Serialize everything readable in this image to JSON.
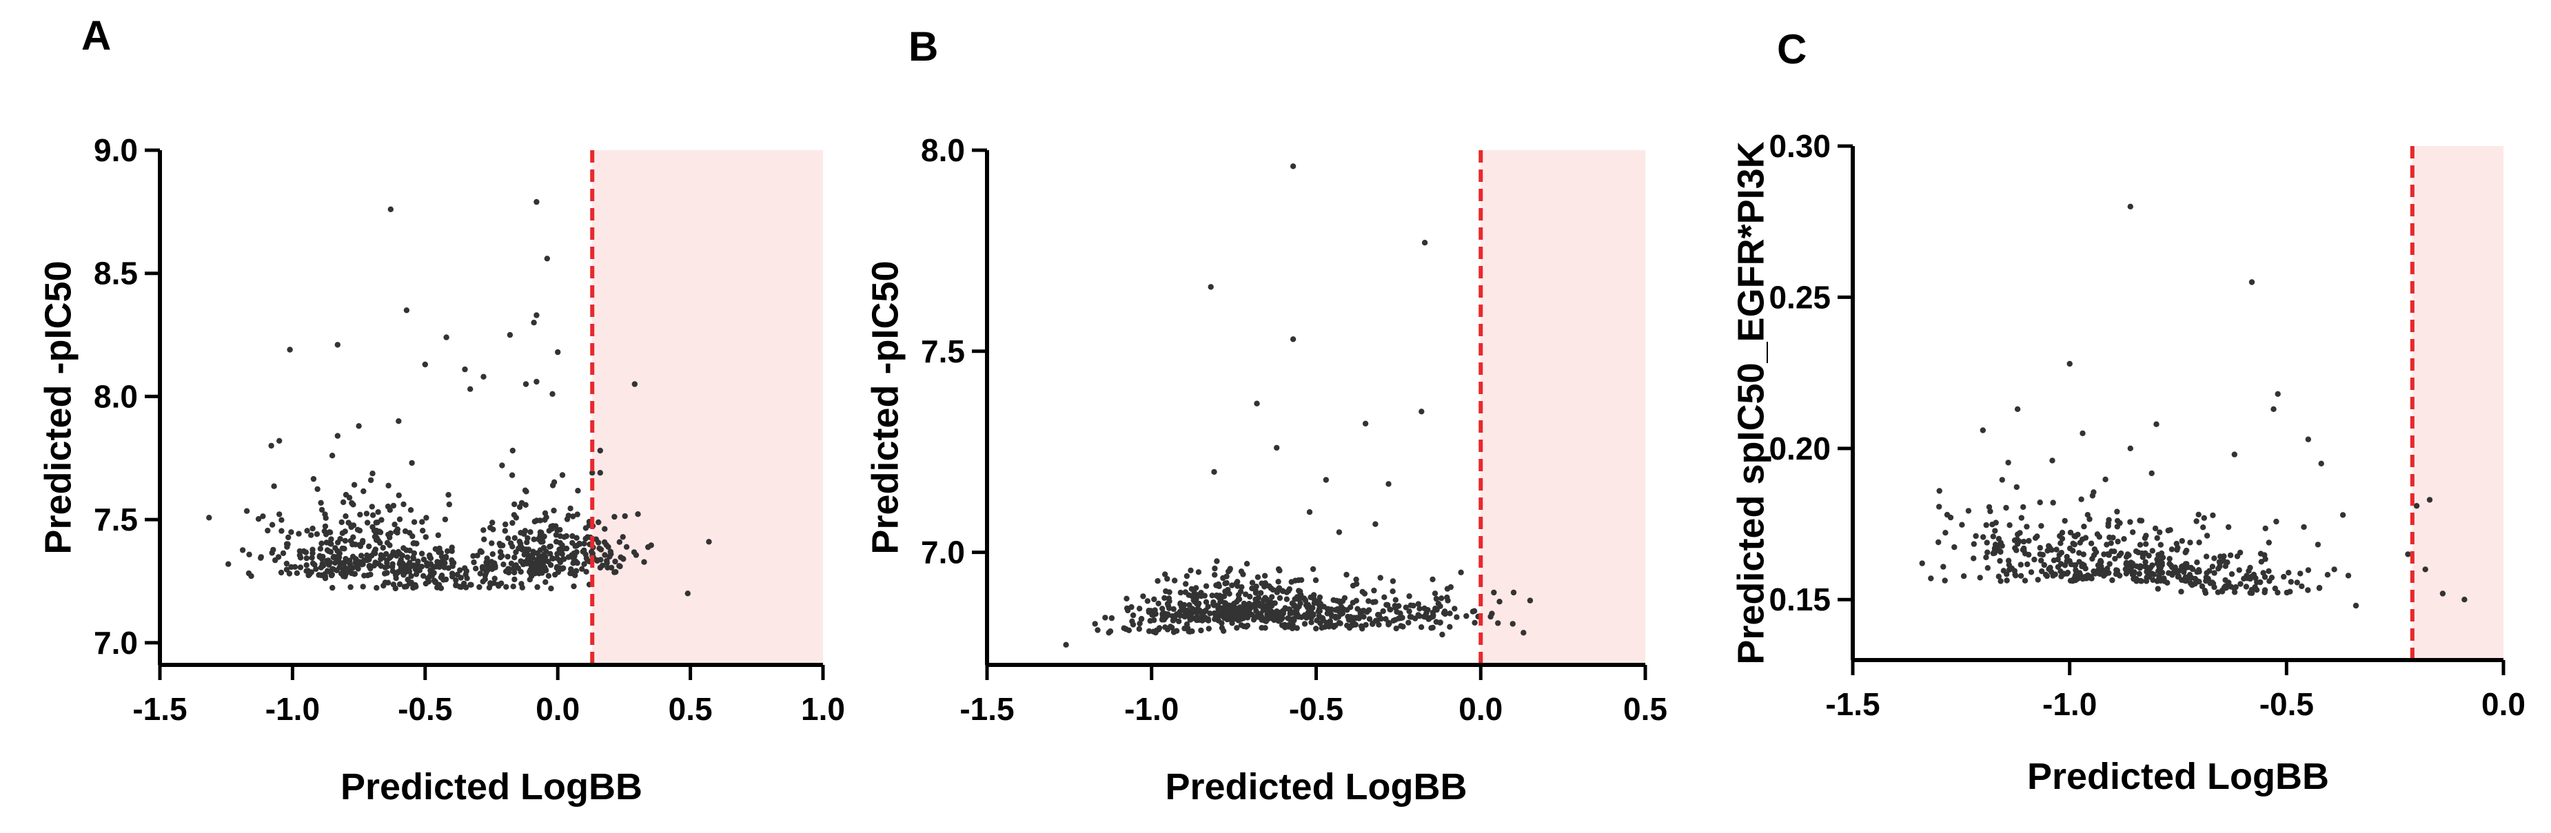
{
  "chart_data": [
    {
      "type": "scatter",
      "panel_label": "A",
      "xlabel": "Predicted LogBB",
      "ylabel": "Predicted -pIC50",
      "xlim": [
        -1.5,
        1.0
      ],
      "ylim": [
        6.91,
        9.0
      ],
      "x_ticks": [
        -1.5,
        -1.0,
        -0.5,
        0.0,
        0.5,
        1.0
      ],
      "x_tick_labels": [
        "-1.5",
        "-1.0",
        "-0.5",
        "0.0",
        "0.5",
        "1.0"
      ],
      "y_ticks": [
        7.0,
        7.5,
        8.0,
        8.5,
        9.0
      ],
      "y_tick_labels": [
        "7.0",
        "7.5",
        "8.0",
        "8.5",
        "9.0"
      ],
      "threshold_x": 0.13,
      "region": {
        "x_from": 0.13,
        "x_to": 1.0,
        "color": "#fde8e8"
      },
      "threshold_color": "#e8282b",
      "point_color": "#333333",
      "points": [
        [
          -1.01,
          8.19
        ],
        [
          -0.83,
          8.21
        ],
        [
          -0.63,
          8.76
        ],
        [
          -0.08,
          8.79
        ],
        [
          -0.04,
          8.56
        ],
        [
          -0.57,
          8.35
        ],
        [
          -0.42,
          8.24
        ],
        [
          -0.18,
          8.25
        ],
        [
          -0.09,
          8.3
        ],
        [
          -0.08,
          8.33
        ],
        [
          -0.35,
          8.11
        ],
        [
          -0.28,
          8.08
        ],
        [
          -0.5,
          8.13
        ],
        [
          -0.33,
          8.03
        ],
        [
          -0.12,
          8.05
        ],
        [
          -0.08,
          8.06
        ],
        [
          -0.02,
          8.01
        ],
        [
          0.0,
          8.18
        ],
        [
          0.29,
          8.05
        ],
        [
          0.16,
          7.78
        ],
        [
          0.57,
          7.41
        ],
        [
          0.49,
          7.2
        ],
        [
          -1.08,
          7.8
        ],
        [
          -1.05,
          7.82
        ],
        [
          -0.83,
          7.84
        ],
        [
          -0.85,
          7.76
        ],
        [
          -0.17,
          7.78
        ],
        [
          -0.21,
          7.72
        ],
        [
          -0.55,
          7.73
        ],
        [
          0.13,
          7.69
        ],
        [
          0.16,
          7.69
        ],
        [
          -0.6,
          7.9
        ],
        [
          -0.75,
          7.88
        ]
      ],
      "clusters": [
        {
          "cx": -0.78,
          "cy": 7.27,
          "sx": 0.17,
          "sy": 0.17,
          "n": 300,
          "ymin": 7.11,
          "ymax": 7.72
        },
        {
          "cx": -0.38,
          "cy": 7.22,
          "sx": 0.22,
          "sy": 0.11,
          "n": 190,
          "ymin": 7.11,
          "ymax": 7.65
        },
        {
          "cx": -0.05,
          "cy": 7.28,
          "sx": 0.12,
          "sy": 0.15,
          "n": 200,
          "ymin": 7.11,
          "ymax": 7.72
        },
        {
          "cx": 0.2,
          "cy": 7.3,
          "sx": 0.08,
          "sy": 0.13,
          "n": 50,
          "ymin": 7.11,
          "ymax": 7.6
        }
      ]
    },
    {
      "type": "scatter",
      "panel_label": "B",
      "xlabel": "Predicted LogBB",
      "ylabel": "Predicted -pIC50",
      "xlim": [
        -1.5,
        0.5
      ],
      "ylim": [
        6.72,
        8.0
      ],
      "x_ticks": [
        -1.5,
        -1.0,
        -0.5,
        0.0,
        0.5
      ],
      "x_tick_labels": [
        "-1.5",
        "-1.0",
        "-0.5",
        "0.0",
        "0.5"
      ],
      "y_ticks": [
        7.0,
        7.5,
        8.0
      ],
      "y_tick_labels": [
        "7.0",
        "7.5",
        "8.0"
      ],
      "threshold_x": 0.0,
      "region": {
        "x_from": 0.0,
        "x_to": 0.5,
        "color": "#fde8e8"
      },
      "threshold_color": "#e8282b",
      "point_color": "#333333",
      "points": [
        [
          -0.57,
          7.96
        ],
        [
          -0.82,
          7.66
        ],
        [
          -0.17,
          7.77
        ],
        [
          -0.57,
          7.53
        ],
        [
          -0.68,
          7.37
        ],
        [
          -0.18,
          7.35
        ],
        [
          -0.35,
          7.32
        ],
        [
          -0.62,
          7.26
        ],
        [
          -0.81,
          7.2
        ],
        [
          -0.47,
          7.18
        ],
        [
          -0.28,
          7.17
        ],
        [
          -0.52,
          7.1
        ],
        [
          -0.32,
          7.07
        ],
        [
          -0.43,
          7.05
        ],
        [
          -0.06,
          6.95
        ],
        [
          0.04,
          6.9
        ],
        [
          0.1,
          6.9
        ],
        [
          0.15,
          6.88
        ],
        [
          0.13,
          6.8
        ],
        [
          -1.26,
          6.77
        ],
        [
          -1.13,
          6.8
        ],
        [
          -0.1,
          6.88
        ],
        [
          0.03,
          6.84
        ]
      ],
      "clusters": [
        {
          "cx": -0.74,
          "cy": 6.83,
          "sx": 0.15,
          "sy": 0.06,
          "n": 380,
          "ymin": 6.77,
          "ymax": 7.05
        },
        {
          "cx": -0.42,
          "cy": 6.81,
          "sx": 0.16,
          "sy": 0.05,
          "n": 200,
          "ymin": 6.77,
          "ymax": 7.0
        },
        {
          "cx": -0.95,
          "cy": 6.8,
          "sx": 0.1,
          "sy": 0.04,
          "n": 60,
          "ymin": 6.77,
          "ymax": 6.92
        },
        {
          "cx": -0.12,
          "cy": 6.82,
          "sx": 0.08,
          "sy": 0.05,
          "n": 40,
          "ymin": 6.77,
          "ymax": 6.95
        }
      ]
    },
    {
      "type": "scatter",
      "panel_label": "C",
      "xlabel": "Predicted LogBB",
      "ylabel": "Predicted spIC50_EGFR*PI3K",
      "xlim": [
        -1.5,
        0.0
      ],
      "ylim": [
        0.13,
        0.3
      ],
      "x_ticks": [
        -1.5,
        -1.0,
        -0.5,
        0.0
      ],
      "x_tick_labels": [
        "-1.5",
        "-1.0",
        "-0.5",
        "0.0"
      ],
      "y_ticks": [
        0.15,
        0.2,
        0.25,
        0.3
      ],
      "y_tick_labels": [
        "0.15",
        "0.20",
        "0.25",
        "0.30"
      ],
      "threshold_x": -0.21,
      "region": {
        "x_from": -0.21,
        "x_to": 0.0,
        "color": "#fde8e8"
      },
      "threshold_color": "#e8282b",
      "point_color": "#333333",
      "points": [
        [
          -0.86,
          0.28
        ],
        [
          -0.58,
          0.255
        ],
        [
          -1.0,
          0.228
        ],
        [
          -0.52,
          0.218
        ],
        [
          -0.53,
          0.213
        ],
        [
          -1.12,
          0.213
        ],
        [
          -1.2,
          0.206
        ],
        [
          -0.45,
          0.203
        ],
        [
          -0.97,
          0.205
        ],
        [
          -0.8,
          0.208
        ],
        [
          -0.62,
          0.198
        ],
        [
          -1.04,
          0.196
        ],
        [
          -0.86,
          0.2
        ],
        [
          -0.42,
          0.195
        ],
        [
          -0.37,
          0.178
        ],
        [
          -0.46,
          0.174
        ],
        [
          -0.69,
          0.177
        ],
        [
          -1.34,
          0.162
        ],
        [
          -1.32,
          0.157
        ],
        [
          -0.34,
          0.148
        ],
        [
          -0.39,
          0.16
        ],
        [
          -0.18,
          0.16
        ],
        [
          -0.14,
          0.152
        ],
        [
          -0.09,
          0.15
        ],
        [
          -0.17,
          0.183
        ],
        [
          -0.2,
          0.181
        ],
        [
          -0.22,
          0.165
        ]
      ],
      "clusters": [
        {
          "cx": -1.0,
          "cy": 0.156,
          "sx": 0.12,
          "sy": 0.01,
          "n": 170,
          "ymin": 0.144,
          "ymax": 0.19
        },
        {
          "cx": -0.8,
          "cy": 0.156,
          "sx": 0.1,
          "sy": 0.011,
          "n": 170,
          "ymin": 0.144,
          "ymax": 0.192
        },
        {
          "cx": -0.62,
          "cy": 0.152,
          "sx": 0.1,
          "sy": 0.008,
          "n": 90,
          "ymin": 0.144,
          "ymax": 0.18
        },
        {
          "cx": -1.15,
          "cy": 0.165,
          "sx": 0.07,
          "sy": 0.012,
          "n": 50,
          "ymin": 0.144,
          "ymax": 0.2
        }
      ]
    }
  ]
}
